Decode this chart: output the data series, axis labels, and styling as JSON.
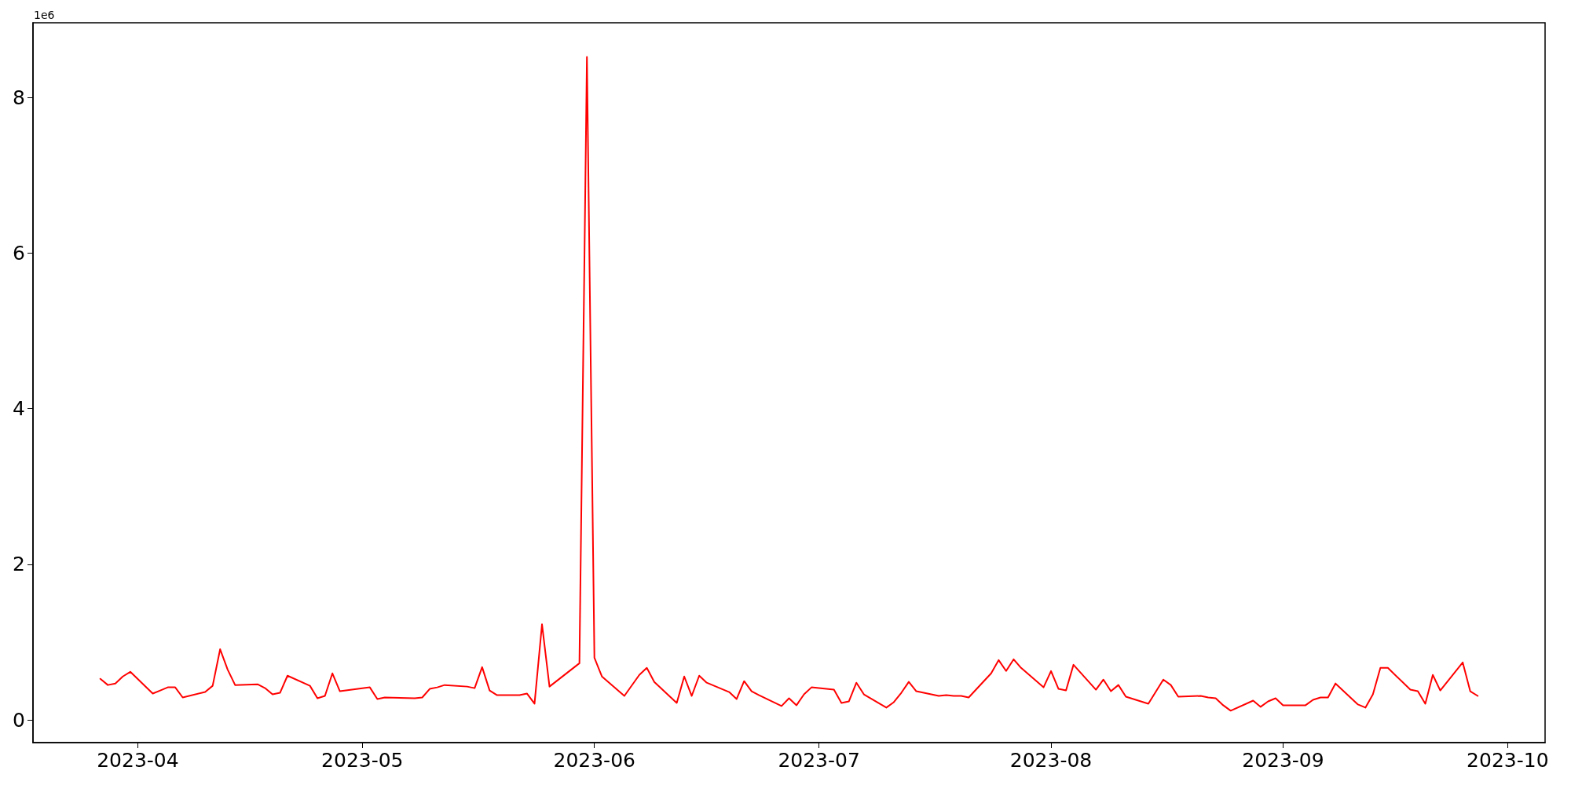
{
  "chart_data": {
    "type": "line",
    "annotations": [
      "1e6"
    ],
    "grid": false,
    "marker": "none",
    "line_style": "solid",
    "xlim": [
      "2023-03-18",
      "2023-10-06"
    ],
    "xticks": [
      {
        "value": "2023-04-01",
        "label": "2023-04"
      },
      {
        "value": "2023-05-01",
        "label": "2023-05"
      },
      {
        "value": "2023-06-01",
        "label": "2023-06"
      },
      {
        "value": "2023-07-01",
        "label": "2023-07"
      },
      {
        "value": "2023-08-01",
        "label": "2023-08"
      },
      {
        "value": "2023-09-01",
        "label": "2023-09"
      },
      {
        "value": "2023-10-01",
        "label": "2023-10"
      }
    ],
    "ylim": [
      -0.29,
      8.96
    ],
    "yticks": [
      0,
      2,
      4,
      6,
      8
    ],
    "x": [
      "2023-03-27",
      "2023-03-28",
      "2023-03-29",
      "2023-03-30",
      "2023-03-31",
      "2023-04-03",
      "2023-04-04",
      "2023-04-05",
      "2023-04-06",
      "2023-04-07",
      "2023-04-10",
      "2023-04-11",
      "2023-04-12",
      "2023-04-13",
      "2023-04-14",
      "2023-04-17",
      "2023-04-18",
      "2023-04-19",
      "2023-04-20",
      "2023-04-21",
      "2023-04-24",
      "2023-04-25",
      "2023-04-26",
      "2023-04-27",
      "2023-04-28",
      "2023-05-02",
      "2023-05-03",
      "2023-05-04",
      "2023-05-08",
      "2023-05-09",
      "2023-05-10",
      "2023-05-11",
      "2023-05-12",
      "2023-05-15",
      "2023-05-16",
      "2023-05-17",
      "2023-05-18",
      "2023-05-19",
      "2023-05-22",
      "2023-05-23",
      "2023-05-24",
      "2023-05-25",
      "2023-05-26",
      "2023-05-30",
      "2023-05-31",
      "2023-06-01",
      "2023-06-02",
      "2023-06-05",
      "2023-06-07",
      "2023-06-08",
      "2023-06-09",
      "2023-06-12",
      "2023-06-13",
      "2023-06-14",
      "2023-06-15",
      "2023-06-16",
      "2023-06-19",
      "2023-06-20",
      "2023-06-21",
      "2023-06-22",
      "2023-06-23",
      "2023-06-26",
      "2023-06-27",
      "2023-06-28",
      "2023-06-29",
      "2023-06-30",
      "2023-07-03",
      "2023-07-04",
      "2023-07-05",
      "2023-07-06",
      "2023-07-07",
      "2023-07-10",
      "2023-07-11",
      "2023-07-12",
      "2023-07-13",
      "2023-07-14",
      "2023-07-17",
      "2023-07-18",
      "2023-07-19",
      "2023-07-20",
      "2023-07-21",
      "2023-07-24",
      "2023-07-25",
      "2023-07-26",
      "2023-07-27",
      "2023-07-28",
      "2023-07-31",
      "2023-08-01",
      "2023-08-02",
      "2023-08-03",
      "2023-08-04",
      "2023-08-07",
      "2023-08-08",
      "2023-08-09",
      "2023-08-10",
      "2023-08-11",
      "2023-08-14",
      "2023-08-16",
      "2023-08-17",
      "2023-08-18",
      "2023-08-21",
      "2023-08-22",
      "2023-08-23",
      "2023-08-24",
      "2023-08-25",
      "2023-08-28",
      "2023-08-29",
      "2023-08-30",
      "2023-08-31",
      "2023-09-01",
      "2023-09-04",
      "2023-09-05",
      "2023-09-06",
      "2023-09-07",
      "2023-09-08",
      "2023-09-11",
      "2023-09-12",
      "2023-09-13",
      "2023-09-14",
      "2023-09-15",
      "2023-09-18",
      "2023-09-19",
      "2023-09-20",
      "2023-09-21",
      "2023-09-22",
      "2023-09-25",
      "2023-09-26",
      "2023-09-27"
    ],
    "series": [
      {
        "color": "#ff0000",
        "values": [
          0.53,
          0.45,
          0.47,
          0.56,
          0.62,
          0.34,
          0.38,
          0.42,
          0.42,
          0.29,
          0.36,
          0.44,
          0.91,
          0.65,
          0.45,
          0.46,
          0.41,
          0.33,
          0.35,
          0.57,
          0.44,
          0.28,
          0.31,
          0.6,
          0.37,
          0.42,
          0.27,
          0.29,
          0.28,
          0.29,
          0.4,
          0.42,
          0.45,
          0.43,
          0.41,
          0.68,
          0.38,
          0.32,
          0.32,
          0.34,
          0.21,
          1.23,
          0.43,
          0.73,
          8.52,
          0.8,
          0.56,
          0.31,
          0.58,
          0.67,
          0.49,
          0.22,
          0.56,
          0.31,
          0.57,
          0.48,
          0.36,
          0.27,
          0.5,
          0.37,
          0.32,
          0.18,
          0.28,
          0.19,
          0.33,
          0.42,
          0.39,
          0.22,
          0.24,
          0.48,
          0.33,
          0.16,
          0.23,
          0.35,
          0.49,
          0.37,
          0.31,
          0.32,
          0.31,
          0.31,
          0.29,
          0.6,
          0.77,
          0.63,
          0.78,
          0.67,
          0.42,
          0.63,
          0.4,
          0.38,
          0.71,
          0.39,
          0.52,
          0.37,
          0.45,
          0.3,
          0.21,
          0.52,
          0.45,
          0.3,
          0.31,
          0.29,
          0.28,
          0.19,
          0.12,
          0.25,
          0.17,
          0.24,
          0.28,
          0.19,
          0.19,
          0.26,
          0.29,
          0.29,
          0.47,
          0.2,
          0.16,
          0.33,
          0.67,
          0.67,
          0.39,
          0.37,
          0.21,
          0.58,
          0.38,
          0.74,
          0.37,
          0.31
        ]
      }
    ]
  }
}
